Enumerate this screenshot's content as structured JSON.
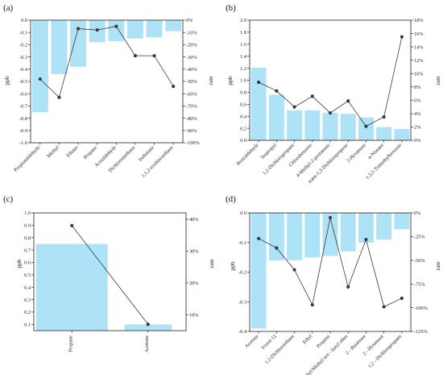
{
  "chart_data": [
    {
      "panel": "(a)",
      "type": "bar",
      "categories": [
        "Propionaldehyde",
        "Methyl",
        "Ethane",
        "Propane",
        "Acetaldehyde",
        "Dichloromethane",
        "Isobutane",
        "1,1,2-trichloroethane"
      ],
      "series": [
        {
          "values": [
            -0.75,
            -0.44,
            -0.38,
            -0.18,
            -0.17,
            -0.15,
            -0.14,
            -0.09
          ]
        },
        {
          "values": [
            -48,
            -63,
            -7,
            -8,
            -5,
            -29,
            -29,
            -54
          ]
        }
      ],
      "ylabel": "ppb",
      "y2label": "rate",
      "ylim": [
        -1.0,
        0.0
      ],
      "y2lim": [
        -100,
        0
      ],
      "yticks": [
        "-1.0",
        "-0.9",
        "-0.8",
        "-0.7",
        "-0.6",
        "-0.5",
        "-0.4",
        "-0.3",
        "-0.2",
        "-0.1",
        "0.0"
      ],
      "y2ticks": [
        "-100%",
        "-90%",
        "-80%",
        "-70%",
        "-60%",
        "-50%",
        "-40%",
        "-30%",
        "-20%",
        "-10%",
        "0%"
      ]
    },
    {
      "panel": "(b)",
      "type": "bar",
      "categories": [
        "Benzaldehyde",
        "Isopropyl",
        "1,2-Dichloropropane",
        "Chlorobenzene",
        "4-Methyl-2-pentanone",
        "trans-1,3-Dichloropropene",
        "2-Hexanone",
        "n-Nonane",
        "1,3,5-Trimethylbenzene"
      ],
      "series": [
        {
          "values": [
            1.21,
            0.76,
            0.5,
            0.5,
            0.46,
            0.44,
            0.38,
            0.22,
            0.19
          ]
        },
        {
          "values": [
            8.7,
            7.4,
            5.0,
            6.6,
            4.1,
            5.9,
            2.1,
            3.5,
            15.5
          ]
        }
      ],
      "ylabel": "ppb",
      "y2label": "rate",
      "ylim": [
        0,
        2.0
      ],
      "y2lim": [
        0,
        18
      ],
      "yticks": [
        "0.0",
        "0.2",
        "0.4",
        "0.6",
        "0.8",
        "1.0",
        "1.2",
        "1.4",
        "1.6",
        "1.8",
        "2.0"
      ],
      "y2ticks": [
        "0%",
        "2%",
        "4%",
        "6%",
        "8%",
        "10%",
        "12%",
        "14%",
        "16%",
        "18%"
      ]
    },
    {
      "panel": "(c)",
      "type": "bar",
      "categories": [
        "Propane",
        "Acetone"
      ],
      "series": [
        {
          "values": [
            0.75,
            0.1
          ]
        },
        {
          "values": [
            38,
            7
          ]
        }
      ],
      "ylabel": "ppb",
      "y2label": "rate",
      "ylim": [
        0.05,
        1.0
      ],
      "y2lim": [
        5,
        42
      ],
      "yticks": [
        "0.1",
        "0.2",
        "0.3",
        "0.4",
        "0.5",
        "0.6",
        "0.7",
        "0.8",
        "0.9",
        "1.0"
      ],
      "y2ticks": [
        "10%",
        "20%",
        "30%",
        "40%"
      ]
    },
    {
      "panel": "(d)",
      "type": "bar",
      "categories": [
        "Acetone",
        "Freon-12",
        "1,2-Dichloroethane",
        "Ethyl",
        "Propene",
        "Methyl/Methyl tert - butyl ether",
        "2 - Butanone",
        "2 - Hexanone",
        "1,2 - Dichloropropane"
      ],
      "series": [
        {
          "values": [
            -0.39,
            -0.16,
            -0.16,
            -0.15,
            -0.145,
            -0.13,
            -0.1,
            -0.09,
            -0.055
          ]
        },
        {
          "values": [
            -27,
            -37,
            -60,
            -97,
            -5,
            -78,
            -28,
            -99,
            -90
          ]
        }
      ],
      "ylabel": "ppb",
      "y2label": "rate",
      "ylim": [
        -0.4,
        0.0
      ],
      "y2lim": [
        -125,
        0
      ],
      "yticks": [
        "-0.4",
        "-0.3",
        "-0.2",
        "-0.1",
        "0.0"
      ],
      "y2ticks": [
        "-125%",
        "-100%",
        "-75%",
        "-50%",
        "-25%",
        "0%"
      ]
    }
  ],
  "colors": {
    "bar": "#aee2f7",
    "line": "#3a3a3a",
    "axis": "#222222"
  }
}
